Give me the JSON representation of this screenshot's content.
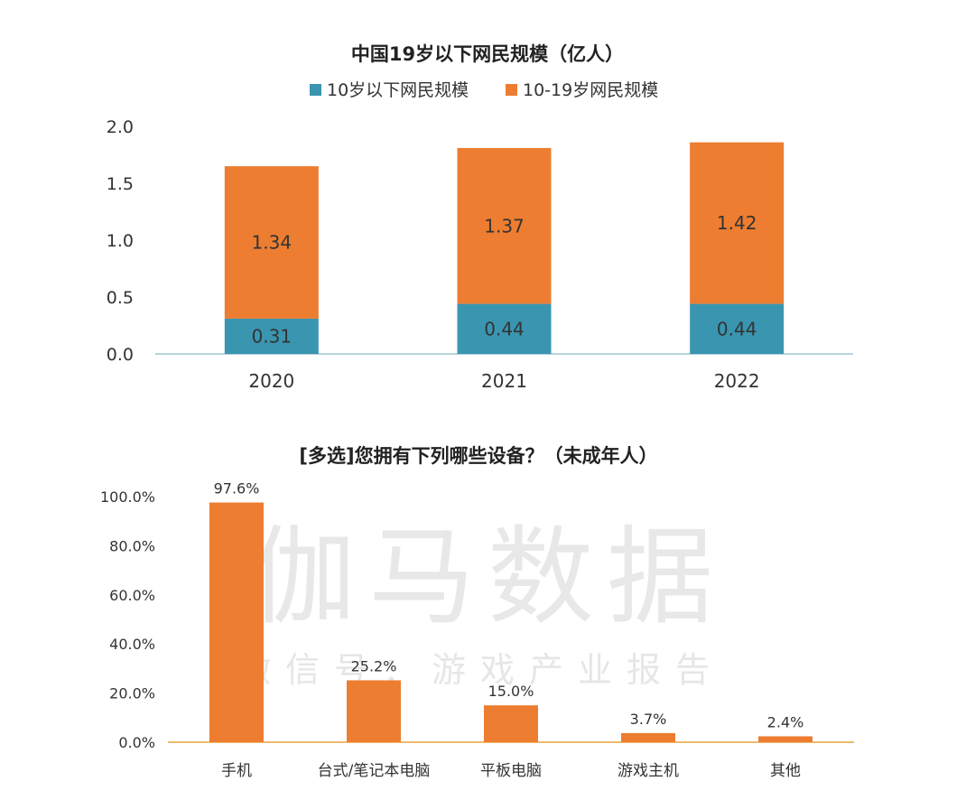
{
  "colors": {
    "orange": "#ED7D31",
    "teal": "#3A95B0",
    "axis": "#9fc6d2",
    "axis2": "#E8A33D"
  },
  "watermark": {
    "main": "伽马数据",
    "sub": "微信号：游戏产业报告"
  },
  "chart_data": [
    {
      "type": "bar",
      "stacked": true,
      "title": "中国19岁以下网民规模（亿人）",
      "categories": [
        "2020",
        "2021",
        "2022"
      ],
      "series": [
        {
          "name": "10岁以下网民规模",
          "values": [
            0.31,
            0.44,
            0.44
          ],
          "labels": [
            "0.31",
            "0.44",
            "0.44"
          ],
          "color": "#3A95B0"
        },
        {
          "name": "10-19岁网民规模",
          "values": [
            1.34,
            1.37,
            1.42
          ],
          "labels": [
            "1.34",
            "1.37",
            "1.42"
          ],
          "color": "#ED7D31"
        }
      ],
      "ylim": [
        0,
        2.0
      ],
      "yticks": [
        0.0,
        0.5,
        1.0,
        1.5,
        2.0
      ],
      "ytick_labels": [
        "0.0",
        "0.5",
        "1.0",
        "1.5",
        "2.0"
      ],
      "legend": "top-center",
      "grid": false
    },
    {
      "type": "bar",
      "title": "[多选]您拥有下列哪些设备？（未成年人）",
      "categories": [
        "手机",
        "台式/笔记本电脑",
        "平板电脑",
        "游戏主机",
        "其他"
      ],
      "values": [
        97.6,
        25.2,
        15.0,
        3.7,
        2.4
      ],
      "value_labels": [
        "97.6%",
        "25.2%",
        "15.0%",
        "3.7%",
        "2.4%"
      ],
      "ylim": [
        0,
        100
      ],
      "yticks": [
        0,
        20,
        40,
        60,
        80,
        100
      ],
      "ytick_labels": [
        "0.0%",
        "20.0%",
        "40.0%",
        "60.0%",
        "80.0%",
        "100.0%"
      ],
      "color": "#ED7D31",
      "grid": false
    }
  ]
}
